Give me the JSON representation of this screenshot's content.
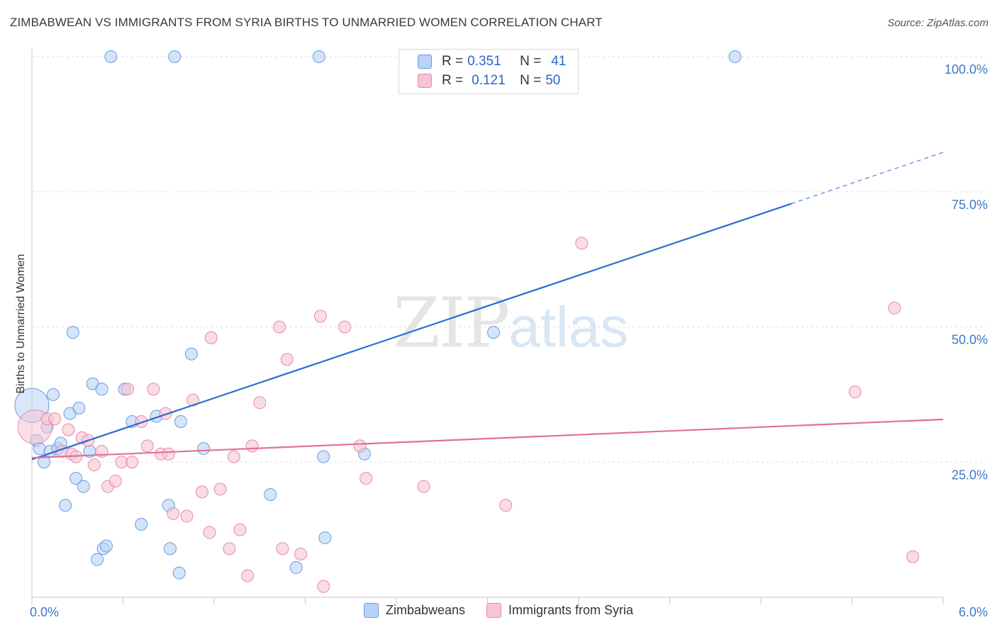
{
  "header": {
    "title": "ZIMBABWEAN VS IMMIGRANTS FROM SYRIA BIRTHS TO UNMARRIED WOMEN CORRELATION CHART",
    "source": "Source: ZipAtlas.com"
  },
  "watermark": {
    "zip": "ZIP",
    "atlas": "atlas"
  },
  "legend": {
    "rows": [
      {
        "r_label": "R =",
        "r_value": "0.351",
        "n_label": "N =",
        "n_value": "41"
      },
      {
        "r_label": "R =",
        "r_value": "0.121",
        "n_label": "N =",
        "n_value": "50"
      }
    ]
  },
  "colors": {
    "blue_fill": "#b8d3f5",
    "blue_stroke": "#6a9be0",
    "blue_line": "#2a6dd0",
    "pink_fill": "#f7c4d3",
    "pink_stroke": "#e88aa8",
    "pink_line": "#e07098",
    "tick_text": "#3d78c9",
    "grid": "#dddddd"
  },
  "chart_data": {
    "type": "scatter",
    "title": "ZIMBABWEAN VS IMMIGRANTS FROM SYRIA BIRTHS TO UNMARRIED WOMEN CORRELATION CHART",
    "xlabel": "",
    "ylabel": "Births to Unmarried Women",
    "xlim": [
      0,
      6
    ],
    "ylim": [
      0,
      100
    ],
    "x_tick_labels": [
      "0.0%",
      "6.0%"
    ],
    "y_ticks": [
      25,
      50,
      75,
      100
    ],
    "y_tick_labels": [
      "25.0%",
      "50.0%",
      "75.0%",
      "100.0%"
    ],
    "legend_position": "top-center",
    "series": [
      {
        "name": "Zimbabweans",
        "r": 0.351,
        "n": 41,
        "trend": {
          "x0": 0,
          "y0": 25.5,
          "x1": 5.0,
          "y1": 72.8,
          "dash_to_x": 6.0,
          "dash_to_y": 82.3
        },
        "points": [
          [
            0.0,
            35.5,
            "large"
          ],
          [
            0.03,
            29.0
          ],
          [
            0.05,
            27.5
          ],
          [
            0.08,
            25.0
          ],
          [
            0.1,
            31.5
          ],
          [
            0.12,
            27.0
          ],
          [
            0.14,
            37.5
          ],
          [
            0.17,
            27.5
          ],
          [
            0.19,
            28.5
          ],
          [
            0.25,
            34.0
          ],
          [
            0.27,
            49.0
          ],
          [
            0.29,
            22.0
          ],
          [
            0.31,
            35.0
          ],
          [
            0.34,
            20.5
          ],
          [
            0.38,
            27.0
          ],
          [
            0.4,
            39.5
          ],
          [
            0.43,
            7.0
          ],
          [
            0.46,
            38.5
          ],
          [
            0.47,
            9.0
          ],
          [
            0.49,
            9.5
          ],
          [
            0.52,
            100.0
          ],
          [
            0.61,
            38.5
          ],
          [
            0.66,
            32.5
          ],
          [
            0.72,
            13.5
          ],
          [
            0.82,
            33.5
          ],
          [
            0.9,
            17.0
          ],
          [
            0.91,
            9.0
          ],
          [
            0.94,
            100.0
          ],
          [
            0.97,
            4.5
          ],
          [
            0.98,
            32.5
          ],
          [
            1.05,
            45.0
          ],
          [
            1.13,
            27.5
          ],
          [
            1.57,
            19.0
          ],
          [
            1.74,
            5.5
          ],
          [
            1.89,
            100.0
          ],
          [
            1.92,
            26.0
          ],
          [
            1.93,
            11.0
          ],
          [
            2.19,
            26.5
          ],
          [
            3.04,
            49.0
          ],
          [
            4.63,
            100.0
          ],
          [
            0.22,
            17.0
          ]
        ]
      },
      {
        "name": "Immigrants from Syria",
        "r": 0.121,
        "n": 50,
        "trend": {
          "x0": 0,
          "y0": 25.8,
          "x1": 6.0,
          "y1": 32.9
        },
        "points": [
          [
            0.02,
            31.5,
            "large"
          ],
          [
            0.1,
            33.0
          ],
          [
            0.15,
            33.0
          ],
          [
            0.2,
            27.0
          ],
          [
            0.24,
            31.0
          ],
          [
            0.26,
            26.5
          ],
          [
            0.29,
            26.0
          ],
          [
            0.33,
            29.5
          ],
          [
            0.37,
            29.0
          ],
          [
            0.41,
            24.5
          ],
          [
            0.46,
            27.0
          ],
          [
            0.5,
            20.5
          ],
          [
            0.55,
            21.5
          ],
          [
            0.59,
            25.0
          ],
          [
            0.63,
            38.5
          ],
          [
            0.66,
            25.0
          ],
          [
            0.72,
            32.5
          ],
          [
            0.76,
            28.0
          ],
          [
            0.8,
            38.5
          ],
          [
            0.85,
            26.5
          ],
          [
            0.88,
            34.0
          ],
          [
            0.9,
            26.5
          ],
          [
            0.93,
            15.5
          ],
          [
            1.02,
            15.0
          ],
          [
            1.06,
            36.5
          ],
          [
            1.12,
            19.5
          ],
          [
            1.17,
            12.0
          ],
          [
            1.18,
            48.0
          ],
          [
            1.24,
            20.0
          ],
          [
            1.3,
            9.0
          ],
          [
            1.33,
            26.0
          ],
          [
            1.37,
            12.5
          ],
          [
            1.42,
            4.0
          ],
          [
            1.45,
            28.0
          ],
          [
            1.5,
            36.0
          ],
          [
            1.63,
            50.0
          ],
          [
            1.65,
            9.0
          ],
          [
            1.68,
            44.0
          ],
          [
            1.77,
            8.0
          ],
          [
            1.9,
            52.0
          ],
          [
            1.92,
            2.0
          ],
          [
            2.06,
            50.0
          ],
          [
            2.16,
            28.0
          ],
          [
            2.2,
            22.0
          ],
          [
            2.58,
            20.5
          ],
          [
            3.12,
            17.0
          ],
          [
            3.62,
            65.5
          ],
          [
            5.42,
            38.0
          ],
          [
            5.68,
            53.5
          ],
          [
            5.8,
            7.5
          ]
        ]
      }
    ]
  },
  "bottom_legend": {
    "items": [
      {
        "label": "Zimbabweans"
      },
      {
        "label": "Immigrants from Syria"
      }
    ]
  }
}
